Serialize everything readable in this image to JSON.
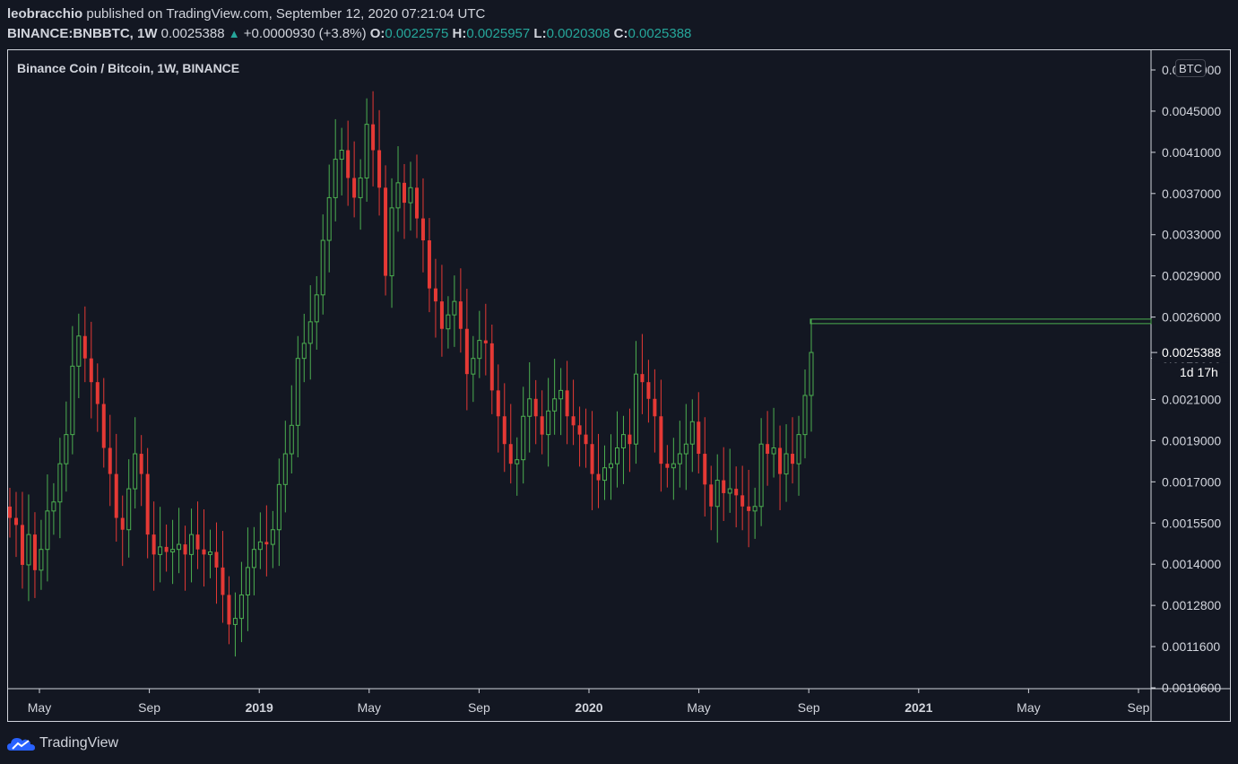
{
  "header": {
    "publisher": "leobracchio",
    "published_text": "published on TradingView.com, September 12, 2020 07:21:04 UTC",
    "symbol_interval": "BINANCE:BNBBTC, 1W",
    "last_price": "0.0025388",
    "change_arrow": "▲",
    "change": "+0.0000930 (+3.8%)",
    "o_label": "O:",
    "o_value": "0.0022575",
    "h_label": "H:",
    "h_value": "0.0025957",
    "l_label": "L:",
    "l_value": "0.0020308",
    "c_label": "C:",
    "c_value": "0.0025388"
  },
  "footer": {
    "brand": "TradingView"
  },
  "colors": {
    "background": "#131722",
    "up": "#4caf50",
    "down": "#e53935",
    "text": "#d1d4dc",
    "level_line": "#4caf50"
  },
  "chart_data": {
    "type": "candlestick",
    "title": "Binance Coin / Bitcoin, 1W, BINANCE",
    "currency": "BTC",
    "y_scale": "log",
    "ylim": [
      0.00106,
      0.0053
    ],
    "y_ticks": [
      "0.0049000",
      "0.0045000",
      "0.0041000",
      "0.0037000",
      "0.0033000",
      "0.0029000",
      "0.0026000",
      "0.0023000",
      "0.0021000",
      "0.0019000",
      "0.0017000",
      "0.0015500",
      "0.0014000",
      "0.0012800",
      "0.0011600",
      "0.0010600"
    ],
    "x_ticks": [
      {
        "label": "May",
        "bold": false
      },
      {
        "label": "Sep",
        "bold": false
      },
      {
        "label": "2019",
        "bold": true
      },
      {
        "label": "May",
        "bold": false
      },
      {
        "label": "Sep",
        "bold": false
      },
      {
        "label": "2020",
        "bold": true
      },
      {
        "label": "May",
        "bold": false
      },
      {
        "label": "Sep",
        "bold": false
      },
      {
        "label": "2021",
        "bold": true
      },
      {
        "label": "May",
        "bold": false
      },
      {
        "label": "Sep",
        "bold": false
      }
    ],
    "last_price_label": "0.0025388",
    "countdown": "1d 17h",
    "horizontal_level": 0.00275,
    "candles_close": [
      0.00165,
      0.00162,
      0.00146,
      0.00158,
      0.00144,
      0.00152,
      0.00168,
      0.00172,
      0.0019,
      0.00205,
      0.00245,
      0.00265,
      0.0025,
      0.00235,
      0.00222,
      0.00198,
      0.00185,
      0.00165,
      0.0016,
      0.00178,
      0.00195,
      0.00185,
      0.00158,
      0.0015,
      0.00153,
      0.00151,
      0.00152,
      0.00154,
      0.0015,
      0.00158,
      0.00152,
      0.0015,
      0.00151,
      0.00145,
      0.00135,
      0.00125,
      0.00127,
      0.00135,
      0.00145,
      0.00152,
      0.00155,
      0.00154,
      0.0016,
      0.0018,
      0.00195,
      0.0021,
      0.0025,
      0.0026,
      0.00275,
      0.00295,
      0.0034,
      0.0038,
      0.0042,
      0.0043,
      0.004,
      0.0038,
      0.004,
      0.0046,
      0.0043,
      0.0039,
      0.0031,
      0.0037,
      0.00395,
      0.00375,
      0.0039,
      0.0036,
      0.0034,
      0.003,
      0.0029,
      0.0027,
      0.0028,
      0.0029,
      0.0027,
      0.0024,
      0.0025,
      0.00262,
      0.0026,
      0.0023,
      0.00215,
      0.002,
      0.0019,
      0.00192,
      0.00215,
      0.00225,
      0.00215,
      0.00205,
      0.00218,
      0.00225,
      0.0023,
      0.00215,
      0.0021,
      0.00205,
      0.002,
      0.00185,
      0.00182,
      0.00188,
      0.0019,
      0.00198,
      0.00205,
      0.002,
      0.0024,
      0.00235,
      0.00225,
      0.00215,
      0.0019,
      0.00188,
      0.0019,
      0.00195,
      0.002,
      0.00212,
      0.00195,
      0.0018,
      0.0017,
      0.00182,
      0.00176,
      0.00178,
      0.00175,
      0.0017,
      0.00168,
      0.0017,
      0.002,
      0.00195,
      0.00198,
      0.00185,
      0.00195,
      0.0019,
      0.00205,
      0.00227,
      0.002539
    ]
  }
}
